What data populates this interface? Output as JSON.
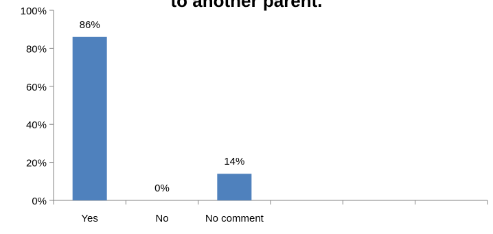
{
  "chart_data": {
    "type": "bar",
    "title": "to another parent.",
    "categories": [
      "Yes",
      "No",
      "No comment",
      "",
      "",
      ""
    ],
    "values": [
      86,
      0,
      14,
      null,
      null,
      null
    ],
    "data_labels": [
      "86%",
      "0%",
      "14%",
      "",
      "",
      ""
    ],
    "y_ticks": [
      "0%",
      "20%",
      "40%",
      "60%",
      "80%",
      "100%"
    ],
    "ylim": [
      0,
      100
    ],
    "xlabel": "",
    "ylabel": "",
    "grid": false,
    "legend": "none",
    "bar_color": "#4f81bd"
  }
}
